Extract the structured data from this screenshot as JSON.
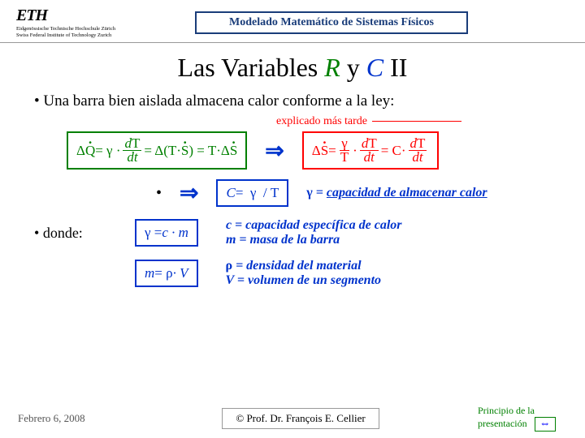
{
  "header": {
    "logo_main": "ETH",
    "logo_sub1": "Eidgenössische Technische Hochschule Zürich",
    "logo_sub2": "Swiss Federal Institute of Technology Zurich",
    "banner": "Modelado Matemático de Sistemas Físicos"
  },
  "title": {
    "pre": "Las Variables ",
    "r": "R",
    "mid": " y ",
    "c": "C",
    "suf": "  II"
  },
  "bullet1": "Una barra bien aislada almacena calor conforme a la ley:",
  "note": "explicado más tarde",
  "eq_left": "ΔQ̇ = γ · (dT/dt) = Δ(T·Ṡ) = T·ΔṠ",
  "eq_right": "ΔṠ = (γ/T)·(dT/dt) = C·(dT/dt)",
  "c_box": "C = γ / T",
  "c_desc": "γ = capacidad de almacenar calor",
  "where": "donde:",
  "g_box": "γ = c · m",
  "g_desc1": "c = capacidad específica de calor",
  "g_desc2": "m  = masa de la barra",
  "m_box": "m = ρ · V",
  "m_desc1": "ρ = densidad del material",
  "m_desc2": "V  = volumen de un segmento",
  "footer": {
    "date": "Febrero 6, 2008",
    "author": "©  Prof. Dr. François E. Cellier",
    "nav": "Principio de la presentación"
  },
  "colors": {
    "green": "#008000",
    "blue": "#0033cc",
    "red": "#ff0000"
  }
}
